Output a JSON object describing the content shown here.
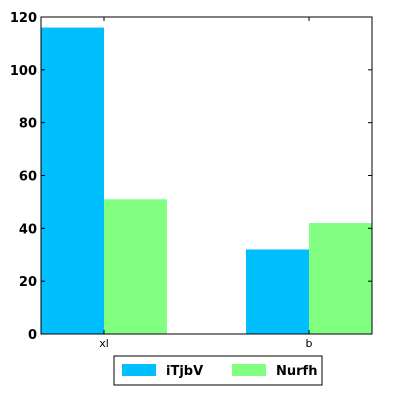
{
  "chart_data": {
    "type": "bar",
    "categories": [
      "xl",
      "b"
    ],
    "series": [
      {
        "name": "iTjbV",
        "values": [
          116,
          32
        ],
        "color": "#00bfff"
      },
      {
        "name": "Nurfh",
        "values": [
          51,
          42
        ],
        "color": "#80ff80"
      }
    ],
    "title": "",
    "xlabel": "",
    "ylabel": "",
    "ylim": [
      0,
      120
    ],
    "yticks": [
      0,
      20,
      40,
      60,
      80,
      100,
      120
    ],
    "grid": false,
    "legend_placement": "bottom-center"
  }
}
